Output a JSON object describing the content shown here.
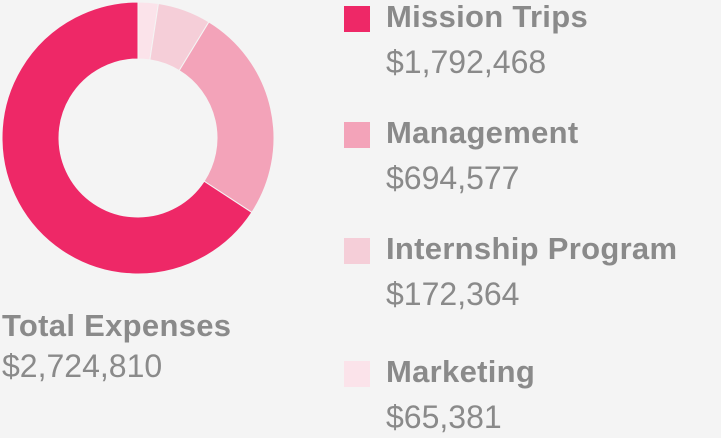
{
  "chart_data": {
    "type": "pie",
    "title": "",
    "categories": [
      "Mission Trips",
      "Management",
      "Internship Program",
      "Marketing"
    ],
    "values": [
      1792468,
      694577,
      172364,
      65381
    ],
    "value_labels": [
      "$1,792,468",
      "$694,577",
      "$172,364",
      "$65,381"
    ],
    "colors": [
      "#ee2867",
      "#f3a3b9",
      "#f5ced8",
      "#fbe3ea"
    ],
    "hole": "donut",
    "legend_position": "right",
    "total": {
      "label": "Total Expenses",
      "value": 2724810,
      "value_label": "$2,724,810"
    }
  }
}
